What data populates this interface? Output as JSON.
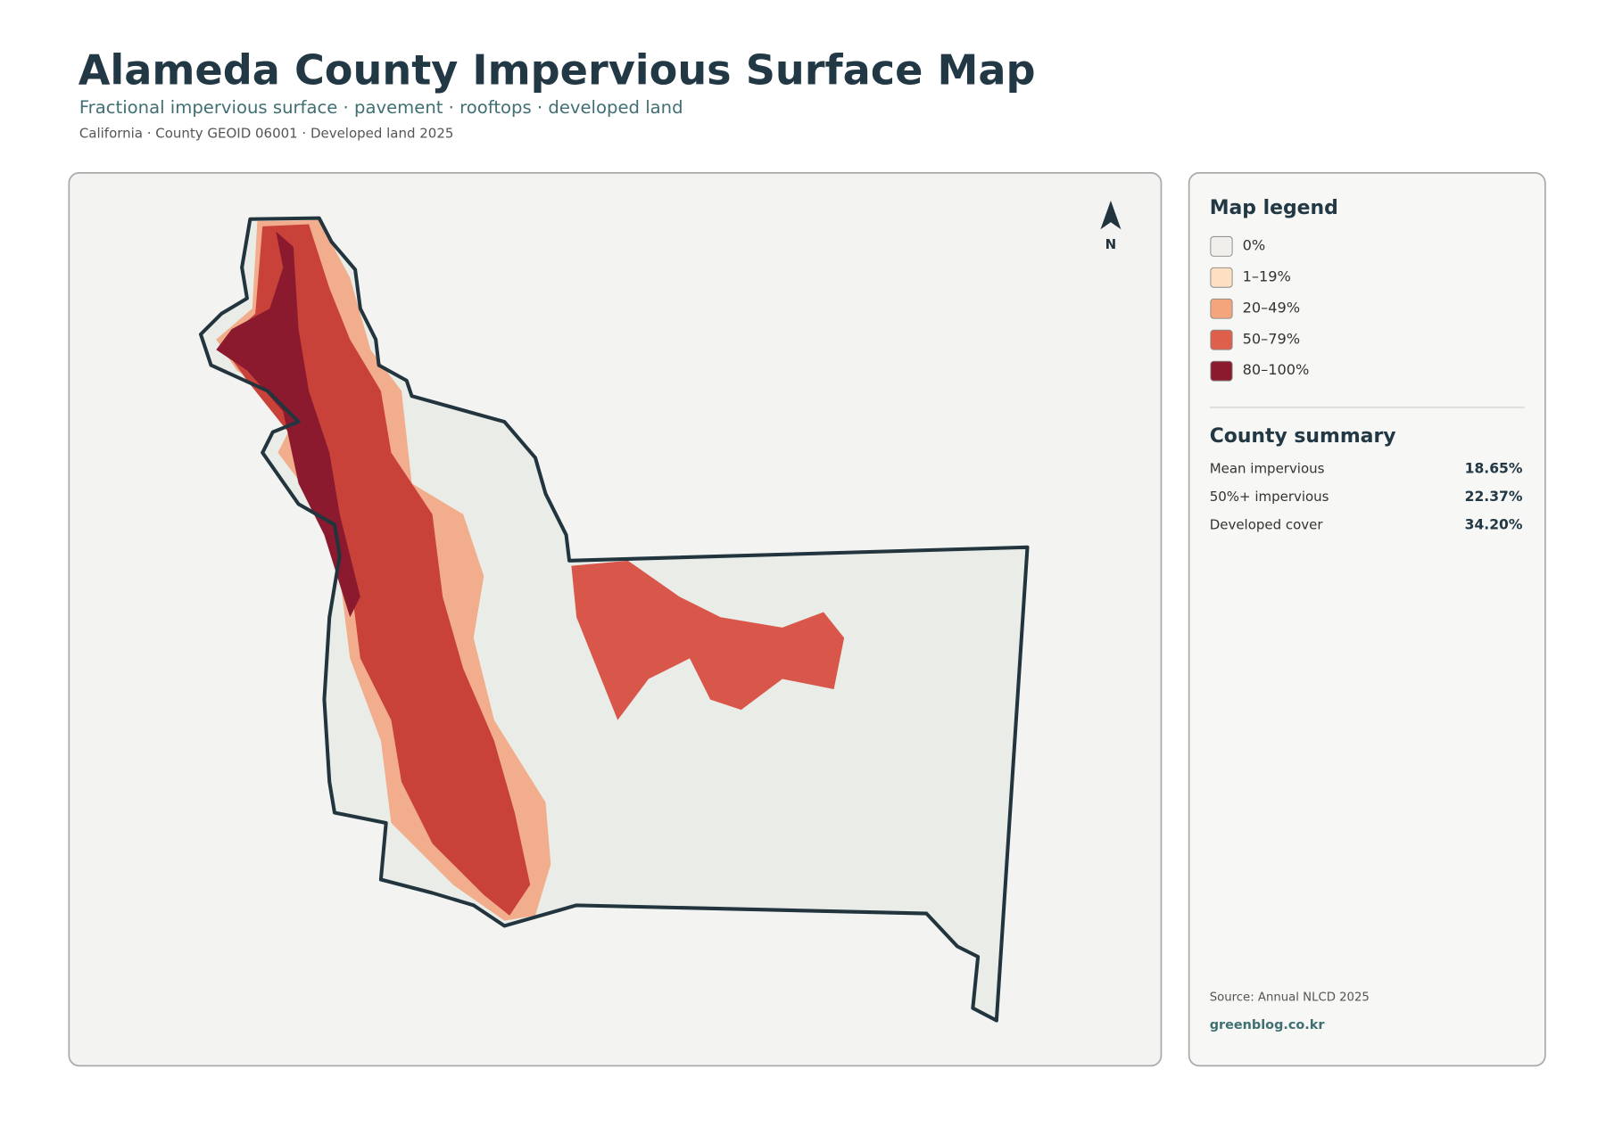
{
  "header": {
    "title": "Alameda County Impervious Surface Map",
    "subtitle": "Fractional impervious surface · pavement · rooftops · developed land",
    "meta": "California · County GEOID 06001 · Developed land 2025"
  },
  "map": {
    "north": "N"
  },
  "legend": {
    "title": "Map legend",
    "items": [
      {
        "label": "0%",
        "color": "#f0efeb"
      },
      {
        "label": "1–19%",
        "color": "#fde0c2"
      },
      {
        "label": "20–49%",
        "color": "#f4a57c"
      },
      {
        "label": "50–79%",
        "color": "#de5f4c"
      },
      {
        "label": "80–100%",
        "color": "#8b1a2e"
      }
    ]
  },
  "summary": {
    "title": "County summary",
    "rows": [
      {
        "label": "Mean impervious",
        "value": "18.65%"
      },
      {
        "label": "50%+ impervious",
        "value": "22.37%"
      },
      {
        "label": "Developed cover",
        "value": "34.20%"
      }
    ]
  },
  "footer": {
    "source": "Source: Annual NLCD 2025",
    "site": "greenblog.co.kr"
  }
}
